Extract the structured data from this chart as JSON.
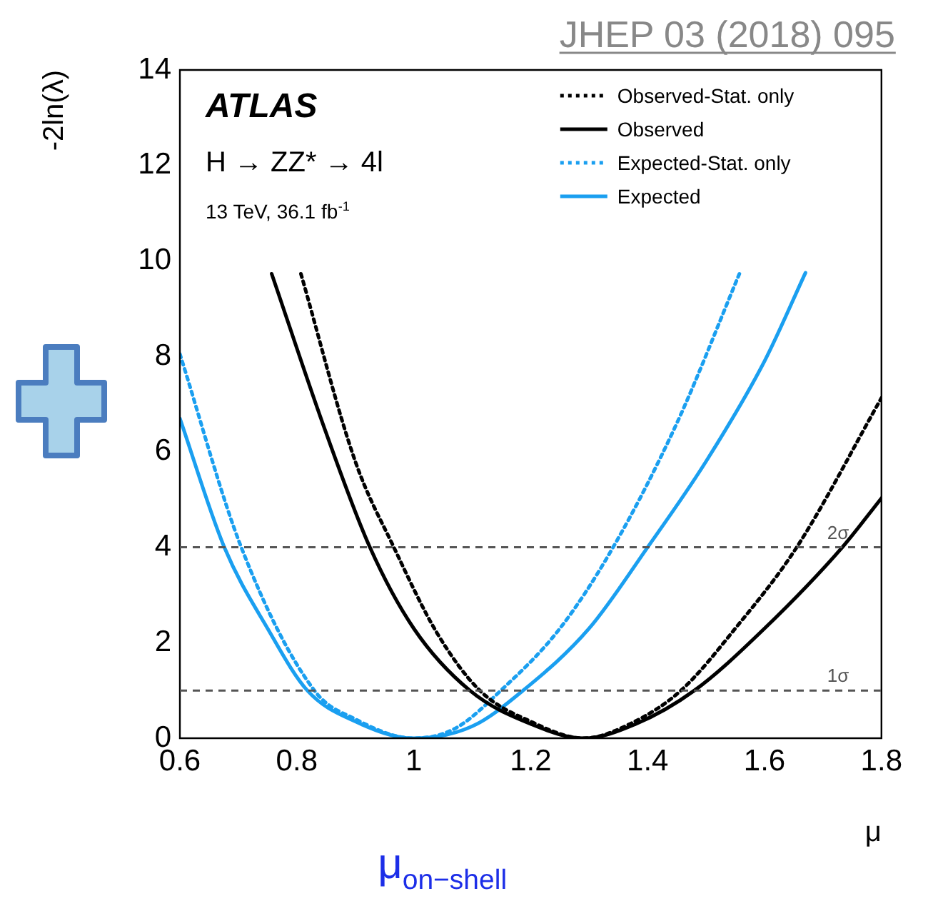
{
  "chart_data": {
    "type": "line",
    "ylabel": "-2ln(λ)",
    "xlabel": "μ",
    "xlim": [
      0.6,
      1.8
    ],
    "xticks": [
      0.6,
      0.8,
      1,
      1.2,
      1.4,
      1.6,
      1.8
    ],
    "ylim": [
      0,
      14
    ],
    "yticks": [
      0,
      2,
      4,
      6,
      8,
      10,
      12,
      14
    ],
    "grid": false,
    "legend": "top right",
    "marker": "none",
    "annotations": [
      "ATLAS",
      "H → ZZ* → 4l",
      "13 TeV, 36.1 fb$^{-1}$",
      "JHEP 03 (2018) 095",
      "μ$_{on−shell}$"
    ],
    "ref_lines": [
      {
        "axis": "y",
        "value": 4,
        "label": "2σ",
        "color": "#555555",
        "line_style": "dashed"
      },
      {
        "axis": "y",
        "value": 1,
        "label": "1σ",
        "color": "#555555",
        "line_style": "dashed"
      }
    ],
    "series": [
      {
        "name": "Observed-Stat. only",
        "color": "#000000",
        "line_style": "dotted",
        "x": [
          0.807,
          0.9,
          0.966,
          1.04,
          1.113,
          1.2,
          1.291,
          1.37,
          1.457,
          1.55,
          1.655,
          1.8
        ],
        "values": [
          9.73,
          5.8,
          4,
          2.2,
          1,
          0.35,
          0,
          0.3,
          1,
          2.3,
          4,
          7.13
        ]
      },
      {
        "name": "Observed",
        "color": "#000000",
        "line_style": "solid",
        "x": [
          0.757,
          0.85,
          0.925,
          1.0,
          1.096,
          1.2,
          1.291,
          1.38,
          1.48,
          1.6,
          1.733,
          1.8
        ],
        "values": [
          9.73,
          6.4,
          4,
          2.3,
          1,
          0.3,
          0,
          0.3,
          1,
          2.3,
          4,
          5.03
        ]
      },
      {
        "name": "Expected-Stat. only",
        "color": "#1a9ff0",
        "line_style": "dotted",
        "x": [
          0.6,
          0.705,
          0.83,
          0.9,
          1.0,
          1.07,
          1.149,
          1.25,
          1.341,
          1.45,
          1.557
        ],
        "values": [
          8.05,
          4,
          1,
          0.4,
          0,
          0.2,
          1,
          2.3,
          4,
          6.6,
          9.73
        ]
      },
      {
        "name": "Expected",
        "color": "#1a9ff0",
        "line_style": "solid",
        "x": [
          0.6,
          0.676,
          0.75,
          0.818,
          0.9,
          1.0,
          1.1,
          1.187,
          1.3,
          1.4,
          1.5,
          1.6,
          1.67
        ],
        "values": [
          6.7,
          4,
          2.3,
          1,
          0.35,
          0,
          0.25,
          1,
          2.3,
          4,
          5.8,
          7.9,
          9.75
        ]
      }
    ]
  }
}
